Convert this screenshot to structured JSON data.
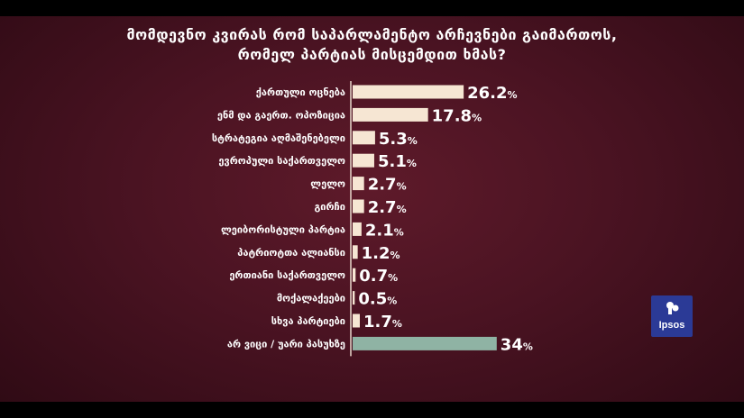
{
  "title": {
    "line1": "მომდევნო კვირას რომ საპარლამენტო არჩევნები გაიმართოს,",
    "line2": "რომელ პარტიას მისცემდით ხმას?"
  },
  "logo": {
    "text": "Ipsos",
    "color": "#2b3a96"
  },
  "colors": {
    "bar": "#f6e6d3",
    "bar_highlight": "#8fb3a4",
    "label": "#ffffff",
    "axis": "#e8d8cc"
  },
  "chart_data": {
    "type": "bar",
    "orientation": "horizontal",
    "categories": [
      "ქართული ოცნება",
      "ენმ და გაერთ. ოპოზიცია",
      "სტრატეგია აღმაშენებელი",
      "ევროპული საქართველო",
      "ლელო",
      "გირჩი",
      "ლეიბორისტული პარტია",
      "პატრიოტთა ალიანსი",
      "ერთიანი საქართველო",
      "მოქალაქეები",
      "სხვა პარტიები",
      "არ ვიცი / უარი პასუხზე"
    ],
    "values": [
      26.2,
      17.8,
      5.3,
      5.1,
      2.7,
      2.7,
      2.1,
      1.2,
      0.7,
      0.5,
      1.7,
      34
    ],
    "value_labels": [
      "26.2",
      "17.8",
      "5.3",
      "5.1",
      "2.7",
      "2.7",
      "2.1",
      "1.2",
      "0.7",
      "0.5",
      "1.7",
      "34"
    ],
    "unit": "%",
    "highlight_index": 11,
    "xlim": [
      0,
      34
    ]
  }
}
